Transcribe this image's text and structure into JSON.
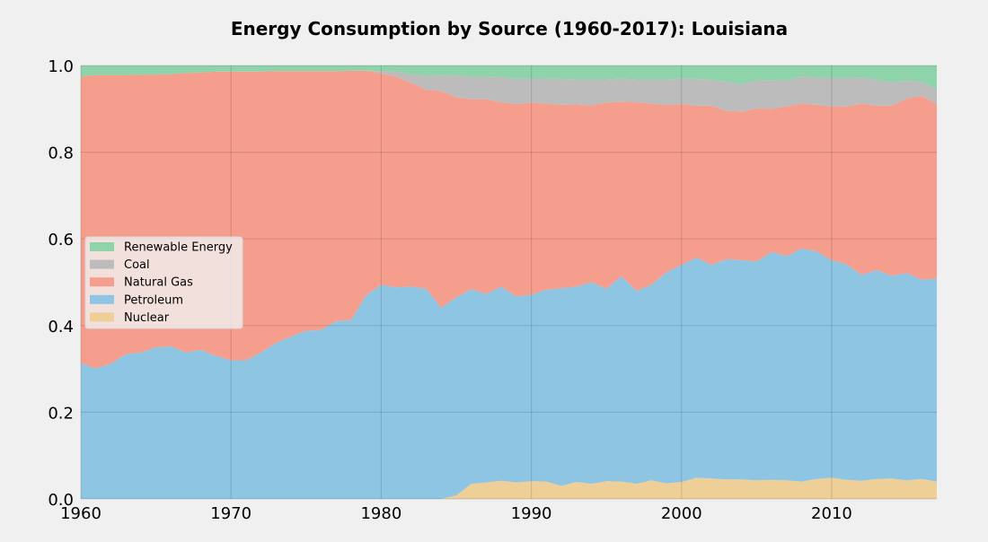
{
  "chart_data": {
    "type": "area",
    "stacked": true,
    "title": "Energy Consumption by Source (1960-2017): Louisiana",
    "xlabel": "",
    "ylabel": "",
    "xlim": [
      1960,
      2017
    ],
    "ylim": [
      0,
      1
    ],
    "grid": true,
    "legend_position": "center-left",
    "x_ticks": [
      1960,
      1970,
      1980,
      1990,
      2000,
      2010
    ],
    "x_tick_labels": [
      "1960",
      "1970",
      "1980",
      "1990",
      "2000",
      "2010"
    ],
    "y_ticks": [
      0,
      0.2,
      0.4,
      0.6,
      0.8,
      1.0
    ],
    "y_tick_labels": [
      "0.0",
      "0.2",
      "0.4",
      "0.6",
      "0.8",
      "1.0"
    ],
    "legend_entries": [
      "Renewable Energy",
      "Coal",
      "Natural Gas",
      "Petroleum",
      "Nuclear"
    ],
    "stack_order": [
      "Nuclear",
      "Petroleum",
      "Natural Gas",
      "Coal",
      "Renewable Energy"
    ],
    "x": [
      1960,
      1961,
      1962,
      1963,
      1964,
      1965,
      1966,
      1967,
      1968,
      1969,
      1970,
      1971,
      1972,
      1973,
      1974,
      1975,
      1976,
      1977,
      1978,
      1979,
      1980,
      1981,
      1982,
      1983,
      1984,
      1985,
      1986,
      1987,
      1988,
      1989,
      1990,
      1991,
      1992,
      1993,
      1994,
      1995,
      1996,
      1997,
      1998,
      1999,
      2000,
      2001,
      2002,
      2003,
      2004,
      2005,
      2006,
      2007,
      2008,
      2009,
      2010,
      2011,
      2012,
      2013,
      2014,
      2015,
      2016,
      2017
    ],
    "series": [
      {
        "name": "Nuclear",
        "color": "#eecf97",
        "values": [
          0,
          0,
          0,
          0,
          0,
          0,
          0,
          0,
          0,
          0,
          0,
          0,
          0,
          0,
          0,
          0,
          0,
          0,
          0,
          0,
          0,
          0,
          0,
          0,
          0,
          0.008,
          0.035,
          0.038,
          0.042,
          0.038,
          0.041,
          0.04,
          0.03,
          0.039,
          0.035,
          0.041,
          0.04,
          0.035,
          0.043,
          0.036,
          0.039,
          0.049,
          0.047,
          0.045,
          0.045,
          0.043,
          0.044,
          0.043,
          0.04,
          0.046,
          0.049,
          0.044,
          0.042,
          0.046,
          0.047,
          0.043,
          0.046,
          0.04
        ]
      },
      {
        "name": "Petroleum",
        "color": "#8ec5e2",
        "values": [
          0.313,
          0.301,
          0.312,
          0.334,
          0.338,
          0.35,
          0.352,
          0.338,
          0.344,
          0.33,
          0.32,
          0.32,
          0.338,
          0.36,
          0.375,
          0.388,
          0.39,
          0.41,
          0.413,
          0.47,
          0.494,
          0.488,
          0.49,
          0.485,
          0.441,
          0.457,
          0.449,
          0.435,
          0.448,
          0.429,
          0.43,
          0.443,
          0.456,
          0.451,
          0.465,
          0.444,
          0.474,
          0.445,
          0.451,
          0.487,
          0.501,
          0.508,
          0.493,
          0.508,
          0.506,
          0.505,
          0.526,
          0.517,
          0.538,
          0.525,
          0.502,
          0.497,
          0.475,
          0.482,
          0.468,
          0.478,
          0.46,
          0.468
        ]
      },
      {
        "name": "Natural Gas",
        "color": "#f69e8e",
        "values": [
          0.662,
          0.677,
          0.666,
          0.644,
          0.641,
          0.629,
          0.628,
          0.645,
          0.64,
          0.656,
          0.666,
          0.666,
          0.648,
          0.627,
          0.612,
          0.599,
          0.597,
          0.577,
          0.575,
          0.518,
          0.488,
          0.486,
          0.47,
          0.459,
          0.5,
          0.462,
          0.438,
          0.449,
          0.425,
          0.444,
          0.443,
          0.429,
          0.423,
          0.42,
          0.408,
          0.429,
          0.403,
          0.435,
          0.418,
          0.386,
          0.371,
          0.35,
          0.367,
          0.342,
          0.343,
          0.353,
          0.33,
          0.346,
          0.334,
          0.338,
          0.355,
          0.364,
          0.395,
          0.379,
          0.392,
          0.403,
          0.424,
          0.403
        ]
      },
      {
        "name": "Coal",
        "color": "#bcbcbc",
        "values": [
          0,
          0,
          0,
          0,
          0,
          0,
          0,
          0,
          0,
          0,
          0,
          0,
          0,
          0,
          0,
          0,
          0,
          0,
          0,
          0,
          0.005,
          0.012,
          0.02,
          0.032,
          0.037,
          0.05,
          0.052,
          0.052,
          0.058,
          0.058,
          0.056,
          0.058,
          0.06,
          0.058,
          0.06,
          0.054,
          0.053,
          0.053,
          0.056,
          0.059,
          0.059,
          0.062,
          0.06,
          0.068,
          0.063,
          0.065,
          0.065,
          0.06,
          0.063,
          0.063,
          0.066,
          0.066,
          0.061,
          0.06,
          0.055,
          0.041,
          0.032,
          0.035
        ]
      },
      {
        "name": "Renewable Energy",
        "color": "#8ed3a9",
        "values": [
          0.025,
          0.022,
          0.022,
          0.022,
          0.021,
          0.021,
          0.02,
          0.017,
          0.016,
          0.014,
          0.014,
          0.014,
          0.014,
          0.013,
          0.013,
          0.013,
          0.013,
          0.013,
          0.012,
          0.012,
          0.013,
          0.014,
          0.02,
          0.024,
          0.022,
          0.023,
          0.026,
          0.026,
          0.027,
          0.031,
          0.03,
          0.03,
          0.031,
          0.032,
          0.032,
          0.032,
          0.03,
          0.032,
          0.032,
          0.032,
          0.03,
          0.031,
          0.033,
          0.037,
          0.043,
          0.034,
          0.035,
          0.034,
          0.025,
          0.028,
          0.028,
          0.029,
          0.027,
          0.033,
          0.038,
          0.035,
          0.038,
          0.054
        ]
      }
    ]
  }
}
